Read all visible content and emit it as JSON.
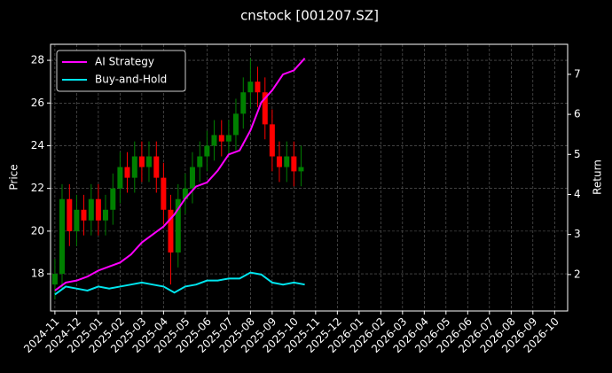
{
  "chart_data": {
    "type": "candlestick",
    "title": "cnstock [001207.SZ]",
    "ylabel": "Price",
    "y2label": "Return",
    "xlim": [
      -0.2,
      23.6
    ],
    "xticks": [
      {
        "value": 0,
        "label": "2024-11"
      },
      {
        "value": 1,
        "label": "2024-12"
      },
      {
        "value": 2,
        "label": "2025-01"
      },
      {
        "value": 3,
        "label": "2025-02"
      },
      {
        "value": 4,
        "label": "2025-03"
      },
      {
        "value": 5,
        "label": "2025-04"
      },
      {
        "value": 6,
        "label": "2025-05"
      },
      {
        "value": 7,
        "label": "2025-06"
      },
      {
        "value": 8,
        "label": "2025-07"
      },
      {
        "value": 9,
        "label": "2025-08"
      },
      {
        "value": 10,
        "label": "2025-09"
      },
      {
        "value": 11,
        "label": "2025-10"
      },
      {
        "value": 12,
        "label": "2025-11"
      },
      {
        "value": 13,
        "label": "2025-12"
      },
      {
        "value": 14,
        "label": "2026-01"
      },
      {
        "value": 15,
        "label": "2026-02"
      },
      {
        "value": 16,
        "label": "2026-03"
      },
      {
        "value": 17,
        "label": "2026-04"
      },
      {
        "value": 18,
        "label": "2026-05"
      },
      {
        "value": 19,
        "label": "2026-06"
      },
      {
        "value": 20,
        "label": "2026-07"
      },
      {
        "value": 21,
        "label": "2026-08"
      },
      {
        "value": 22,
        "label": "2026-09"
      },
      {
        "value": 23,
        "label": "2026-10"
      }
    ],
    "ylim": [
      16.26,
      28.75
    ],
    "yticks": [
      18,
      20,
      22,
      24,
      26,
      28
    ],
    "y2lim": [
      1.09,
      7.75
    ],
    "y2ticks": [
      2,
      3,
      4,
      5,
      6,
      7
    ],
    "grid": true,
    "legend": "upper left",
    "up_color": "#008000",
    "down_color": "#ff0000",
    "ohlc": {
      "x": [
        0,
        0.33,
        0.67,
        1,
        1.33,
        1.67,
        2,
        2.33,
        2.67,
        3,
        3.33,
        3.67,
        4,
        4.33,
        4.67,
        5,
        5.33,
        5.67,
        6,
        6.33,
        6.67,
        7,
        7.33,
        7.67,
        8,
        8.33,
        8.67,
        9,
        9.33,
        9.67,
        10,
        10.33,
        10.67,
        11,
        11.33
      ],
      "open": [
        17.5,
        18.0,
        21.5,
        20.0,
        21.0,
        20.5,
        21.5,
        20.5,
        21.0,
        22.0,
        23.0,
        22.5,
        23.5,
        23.0,
        23.5,
        22.5,
        21.0,
        19.0,
        21.5,
        22.0,
        23.0,
        23.5,
        24.0,
        24.5,
        24.2,
        24.5,
        25.5,
        26.5,
        27.0,
        26.5,
        25.0,
        23.5,
        23.0,
        23.5,
        22.8
      ],
      "high": [
        18.7,
        22.2,
        22.2,
        21.7,
        21.7,
        22.2,
        22.2,
        21.7,
        22.7,
        23.7,
        23.7,
        24.2,
        24.2,
        24.2,
        24.2,
        23.2,
        21.7,
        22.2,
        22.7,
        23.7,
        24.2,
        24.7,
        25.2,
        25.2,
        25.2,
        26.2,
        27.2,
        28.1,
        27.7,
        27.2,
        25.7,
        24.2,
        24.2,
        24.2,
        24.0
      ],
      "low": [
        16.8,
        17.3,
        19.3,
        19.3,
        19.8,
        19.8,
        19.8,
        19.8,
        20.3,
        21.3,
        21.8,
        21.8,
        22.3,
        22.3,
        21.8,
        20.3,
        17.5,
        18.3,
        20.8,
        21.3,
        22.3,
        22.8,
        23.3,
        23.5,
        23.5,
        23.8,
        24.8,
        25.8,
        25.8,
        24.3,
        22.8,
        22.3,
        22.3,
        22.1,
        22.1
      ],
      "close": [
        18.0,
        21.5,
        20.0,
        21.0,
        20.5,
        21.5,
        20.5,
        21.0,
        22.0,
        23.0,
        22.5,
        23.5,
        23.0,
        23.5,
        22.5,
        21.0,
        19.0,
        21.5,
        22.0,
        23.0,
        23.5,
        24.0,
        24.5,
        24.2,
        24.5,
        25.5,
        26.5,
        27.0,
        26.5,
        25.0,
        23.5,
        23.0,
        23.5,
        22.8,
        23.0
      ]
    },
    "series": [
      {
        "name": "AI Strategy",
        "color": "#ff00ff",
        "axis": "y2",
        "x": [
          0,
          0.5,
          1,
          1.5,
          2,
          2.5,
          3,
          3.5,
          4,
          4.5,
          5,
          5.5,
          6,
          6.5,
          7,
          7.5,
          8,
          8.5,
          9,
          9.5,
          10,
          10.5,
          11,
          11.5
        ],
        "values": [
          1.6,
          1.8,
          1.85,
          1.95,
          2.1,
          2.2,
          2.3,
          2.5,
          2.8,
          3.0,
          3.2,
          3.5,
          3.9,
          4.2,
          4.3,
          4.6,
          5.0,
          5.1,
          5.6,
          6.3,
          6.6,
          7.0,
          7.1,
          7.4
        ]
      },
      {
        "name": "Buy-and-Hold",
        "color": "#00e5ee",
        "axis": "y2",
        "x": [
          0,
          0.5,
          1,
          1.5,
          2,
          2.5,
          3,
          3.5,
          4,
          4.5,
          5,
          5.5,
          6,
          6.5,
          7,
          7.5,
          8,
          8.5,
          9,
          9.5,
          10,
          10.5,
          11,
          11.5
        ],
        "values": [
          1.5,
          1.7,
          1.65,
          1.6,
          1.7,
          1.65,
          1.7,
          1.75,
          1.8,
          1.75,
          1.7,
          1.55,
          1.7,
          1.75,
          1.85,
          1.85,
          1.9,
          1.9,
          2.05,
          2.0,
          1.8,
          1.75,
          1.8,
          1.75
        ]
      }
    ]
  }
}
